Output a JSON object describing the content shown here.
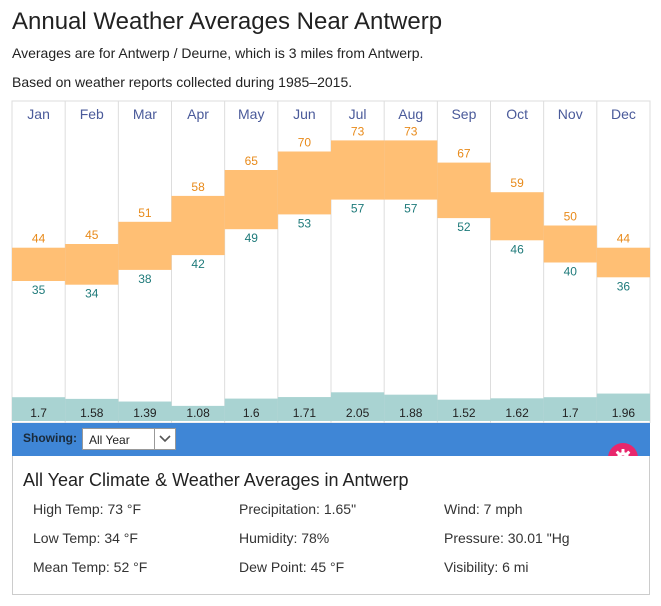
{
  "header": {
    "title": "Annual Weather Averages Near Antwerp",
    "line1": "Averages are for Antwerp / Deurne, which is 3 miles from Antwerp.",
    "line2": "Based on weather reports collected during 1985–2015."
  },
  "chart_data": {
    "type": "bar",
    "categories": [
      "Jan",
      "Feb",
      "Mar",
      "Apr",
      "May",
      "Jun",
      "Jul",
      "Aug",
      "Sep",
      "Oct",
      "Nov",
      "Dec"
    ],
    "series": [
      {
        "name": "",
        "values": [
          44,
          45,
          51,
          58,
          65,
          70,
          73,
          73,
          67,
          59,
          50,
          44
        ]
      },
      {
        "name": "",
        "values": [
          35,
          34,
          38,
          42,
          49,
          53,
          57,
          57,
          52,
          46,
          40,
          36
        ]
      },
      {
        "name": "",
        "values": [
          1.7,
          1.58,
          1.39,
          1.08,
          1.6,
          1.71,
          2.05,
          1.88,
          1.52,
          1.62,
          1.7,
          1.96
        ]
      }
    ],
    "precip_labels": [
      "1.7",
      "1.58",
      "1.39",
      "1.08",
      "1.6",
      "1.71",
      "2.05",
      "1.88",
      "1.52",
      "1.62",
      "1.7",
      "1.96"
    ],
    "colors": {
      "temp_bar": "#ffbf74",
      "high_text": "#e88a1a",
      "low_text": "#1e7a7a",
      "precip_bar": "#a9d3d2",
      "month_text": "#4a5a9a",
      "grid": "#dddddd"
    }
  },
  "controls": {
    "showing_label": "Showing:",
    "selected": "All Year"
  },
  "panel": {
    "title": "All Year Climate & Weather Averages in Antwerp",
    "stats": [
      [
        "High Temp: 73 °F",
        "Precipitation: 1.65\"",
        "Wind: 7 mph"
      ],
      [
        "Low Temp: 34 °F",
        "Humidity: 78%",
        "Pressure: 30.01 \"Hg"
      ],
      [
        "Mean Temp: 52 °F",
        "Dew Point: 45 °F",
        "Visibility: 6 mi"
      ]
    ]
  }
}
